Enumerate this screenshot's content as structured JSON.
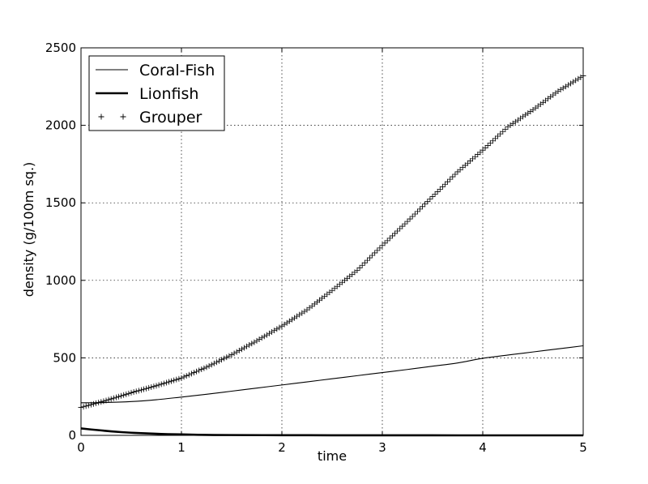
{
  "chart_data": {
    "type": "line",
    "title": "",
    "xlabel": "time",
    "ylabel": "density (g/100m sq.)",
    "xlim": [
      0,
      5
    ],
    "ylim": [
      0,
      2500
    ],
    "xticks": [
      0,
      1,
      2,
      3,
      4,
      5
    ],
    "yticks": [
      0,
      500,
      1000,
      1500,
      2000,
      2500
    ],
    "grid": true,
    "legend_position": "top-left",
    "series": [
      {
        "name": "Coral-Fish",
        "style": "thin-line",
        "x": [
          0,
          0.25,
          0.5,
          0.75,
          1,
          1.25,
          1.5,
          1.75,
          2,
          2.25,
          2.5,
          2.75,
          3,
          3.25,
          3.5,
          3.75,
          4,
          4.25,
          4.5,
          4.75,
          5
        ],
        "values": [
          210,
          212,
          218,
          230,
          247,
          265,
          285,
          305,
          325,
          345,
          365,
          385,
          405,
          425,
          446,
          467,
          497,
          518,
          538,
          558,
          578
        ]
      },
      {
        "name": "Lionfish",
        "style": "thick-line",
        "x": [
          0,
          0.1,
          0.2,
          0.3,
          0.4,
          0.5,
          0.6,
          0.8,
          1,
          1.25,
          1.5,
          2,
          2.5,
          3,
          3.5,
          4,
          4.5,
          5
        ],
        "values": [
          45,
          38,
          32,
          26,
          21,
          17,
          14,
          9,
          6,
          3,
          2,
          1,
          0.5,
          0.2,
          0.1,
          0,
          0,
          0
        ]
      },
      {
        "name": "Grouper",
        "style": "plus-markers",
        "x": [
          0,
          0.25,
          0.5,
          0.75,
          1,
          1.25,
          1.5,
          1.75,
          2,
          2.25,
          2.5,
          2.75,
          3,
          3.25,
          3.5,
          3.75,
          4,
          4.25,
          4.5,
          4.75,
          5
        ],
        "values": [
          180,
          225,
          275,
          320,
          370,
          440,
          520,
          610,
          705,
          810,
          935,
          1065,
          1225,
          1380,
          1540,
          1700,
          1840,
          1990,
          2100,
          2220,
          2320
        ]
      }
    ]
  }
}
